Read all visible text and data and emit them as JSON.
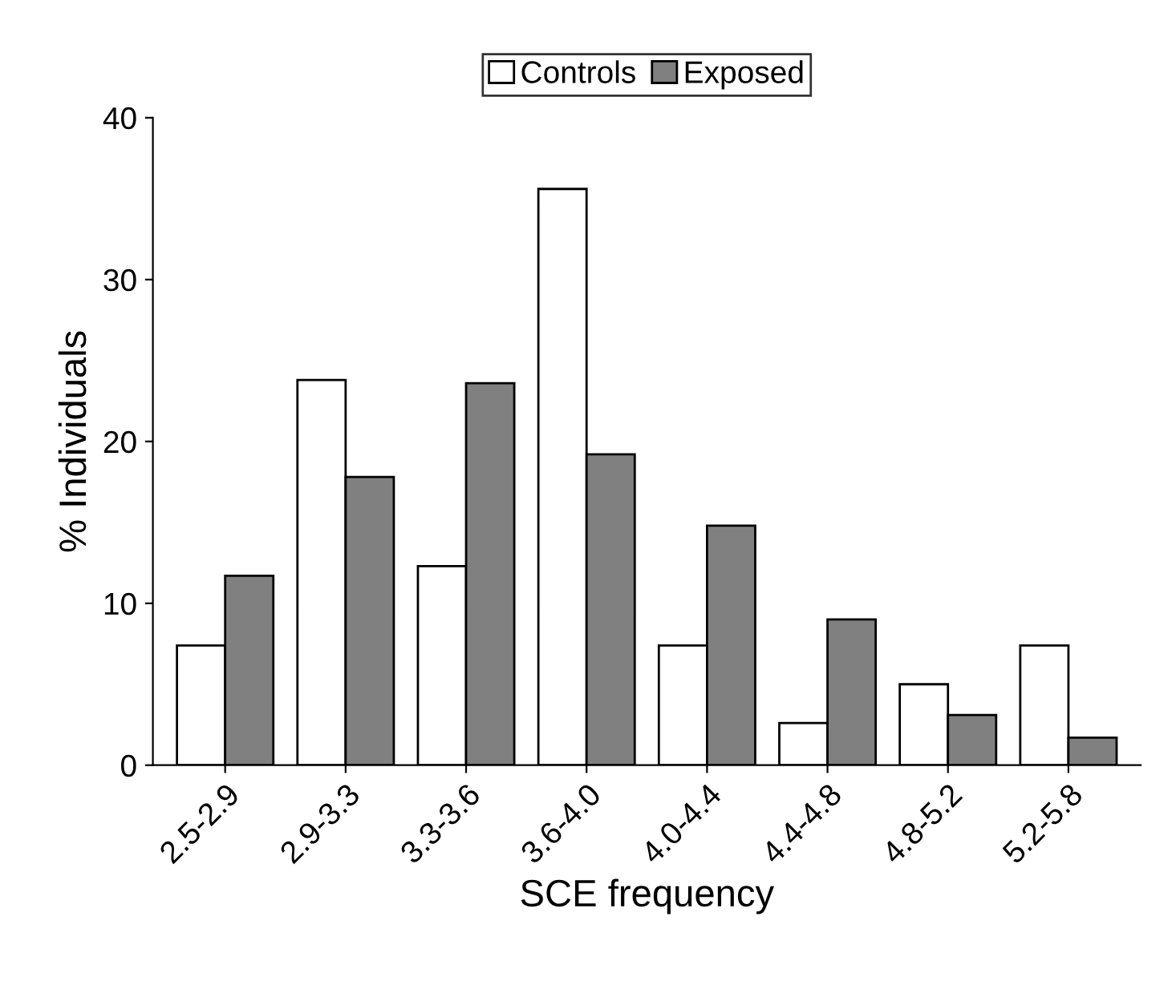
{
  "chart_data": {
    "type": "bar",
    "xlabel": "SCE frequency",
    "ylabel": "% Individuals",
    "categories": [
      "2.5-2.9",
      "2.9-3.3",
      "3.3-3.6",
      "3.6-4.0",
      "4.0-4.4",
      "4.4-4.8",
      "4.8-5.2",
      "5.2-5.8"
    ],
    "series": [
      {
        "name": "Controls",
        "color": "#ffffff",
        "values": [
          7.4,
          23.8,
          12.3,
          35.6,
          7.4,
          2.6,
          5.0,
          7.4
        ]
      },
      {
        "name": "Exposed",
        "color": "#808080",
        "values": [
          11.7,
          17.8,
          23.6,
          19.2,
          14.8,
          9.0,
          3.1,
          1.7
        ]
      }
    ],
    "ylim": [
      0,
      40
    ],
    "yticks": [
      0,
      10,
      20,
      30,
      40
    ],
    "legend": "top",
    "grid": false
  }
}
